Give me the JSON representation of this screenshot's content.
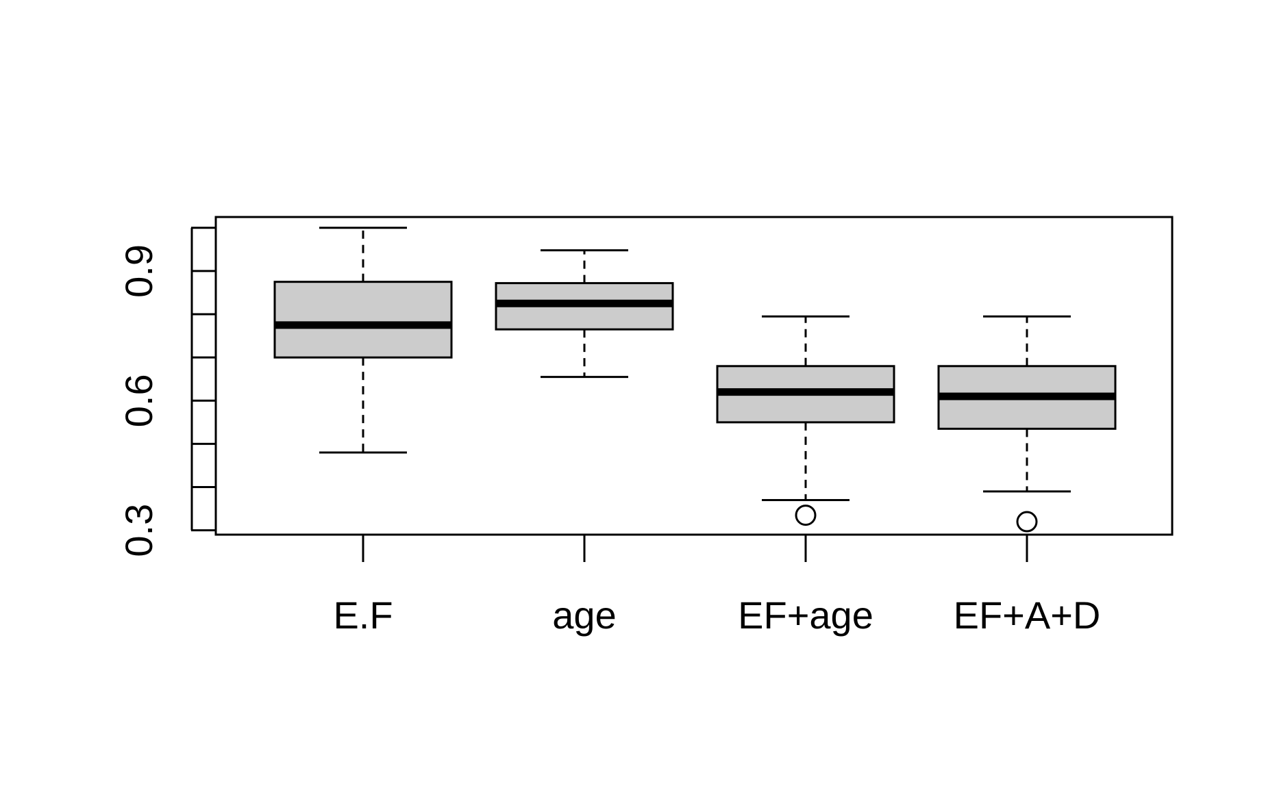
{
  "chart_data": {
    "type": "boxplot",
    "title": "",
    "xlabel": "",
    "ylabel": "",
    "ylim": [
      0.29,
      1.025
    ],
    "yticks": [
      0.3,
      0.4,
      0.5,
      0.6,
      0.7,
      0.8,
      0.9,
      1.0
    ],
    "ytick_labels": [
      "0.3",
      "",
      "",
      "0.6",
      "",
      "",
      "0.9",
      ""
    ],
    "categories": [
      "E.F",
      "age",
      "EF+age",
      "EF+A+D"
    ],
    "boxes": [
      {
        "label": "E.F",
        "whisker_low": 0.48,
        "q1": 0.7,
        "median": 0.775,
        "q3": 0.875,
        "whisker_high": 1.0,
        "outliers": []
      },
      {
        "label": "age",
        "whisker_low": 0.655,
        "q1": 0.765,
        "median": 0.825,
        "q3": 0.872,
        "whisker_high": 0.948,
        "outliers": []
      },
      {
        "label": "EF+age",
        "whisker_low": 0.37,
        "q1": 0.55,
        "median": 0.62,
        "q3": 0.68,
        "whisker_high": 0.795,
        "outliers": [
          0.335
        ]
      },
      {
        "label": "EF+A+D",
        "whisker_low": 0.39,
        "q1": 0.535,
        "median": 0.61,
        "q3": 0.68,
        "whisker_high": 0.795,
        "outliers": [
          0.32
        ]
      }
    ],
    "colors": {
      "box_fill": "#cccccc",
      "stroke": "#000000",
      "background": "#ffffff"
    },
    "grid": false,
    "legend": "none"
  }
}
